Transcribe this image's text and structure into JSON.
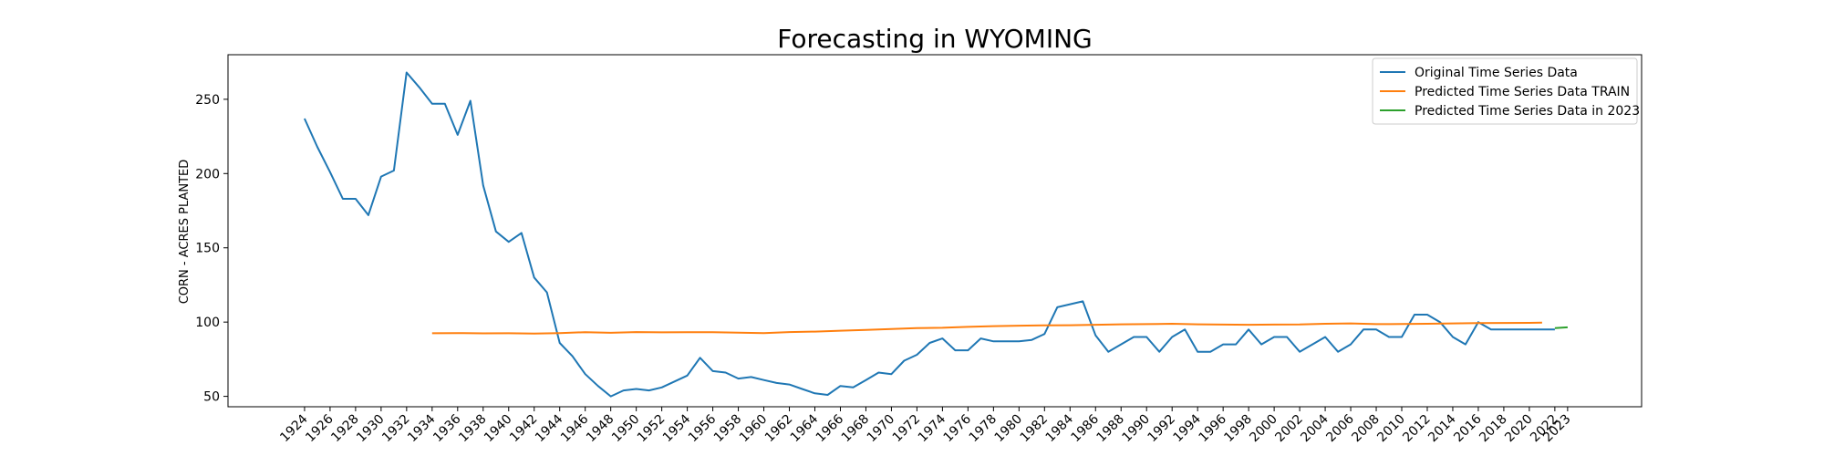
{
  "chart_data": {
    "type": "line",
    "title": "Forecasting in WYOMING",
    "xlabel": "",
    "ylabel": "CORN - ACRES PLANTED",
    "xlim": [
      1918.0,
      2028.8
    ],
    "ylim": [
      43,
      280
    ],
    "yticks": [
      50,
      100,
      150,
      200,
      250
    ],
    "xticks": [
      1924,
      1926,
      1928,
      1930,
      1932,
      1934,
      1936,
      1938,
      1940,
      1942,
      1944,
      1946,
      1948,
      1950,
      1952,
      1954,
      1956,
      1958,
      1960,
      1962,
      1964,
      1966,
      1968,
      1970,
      1972,
      1974,
      1976,
      1978,
      1980,
      1982,
      1984,
      1986,
      1988,
      1990,
      1992,
      1994,
      1996,
      1998,
      2000,
      2002,
      2004,
      2006,
      2008,
      2010,
      2012,
      2014,
      2016,
      2018,
      2020,
      2022,
      2023
    ],
    "legend_position": "top-right",
    "grid": false,
    "series": [
      {
        "name": "Original Time Series Data",
        "color": "#1f77b4",
        "x": [
          1924,
          1925,
          1926,
          1927,
          1928,
          1929,
          1930,
          1931,
          1932,
          1933,
          1934,
          1935,
          1936,
          1937,
          1938,
          1939,
          1940,
          1941,
          1942,
          1943,
          1944,
          1945,
          1946,
          1947,
          1948,
          1949,
          1950,
          1951,
          1952,
          1953,
          1954,
          1955,
          1956,
          1957,
          1958,
          1959,
          1960,
          1961,
          1962,
          1963,
          1964,
          1965,
          1966,
          1967,
          1968,
          1969,
          1970,
          1971,
          1972,
          1973,
          1974,
          1975,
          1976,
          1977,
          1978,
          1979,
          1980,
          1981,
          1982,
          1983,
          1984,
          1985,
          1986,
          1987,
          1988,
          1989,
          1990,
          1991,
          1992,
          1993,
          1994,
          1995,
          1996,
          1997,
          1998,
          1999,
          2000,
          2001,
          2002,
          2003,
          2004,
          2005,
          2006,
          2007,
          2008,
          2009,
          2010,
          2011,
          2012,
          2013,
          2014,
          2015,
          2016,
          2017,
          2018,
          2019,
          2020,
          2021,
          2022
        ],
        "values": [
          237,
          218,
          201,
          183,
          183,
          172,
          198,
          202,
          268,
          258,
          247,
          247,
          226,
          249,
          192,
          161,
          154,
          160,
          130,
          120,
          86,
          77,
          65,
          57,
          50,
          54,
          55,
          54,
          56,
          60,
          64,
          76,
          67,
          66,
          62,
          63,
          61,
          59,
          58,
          55,
          52,
          51,
          57,
          56,
          61,
          66,
          65,
          74,
          78,
          86,
          89,
          81,
          81,
          89,
          87,
          87,
          87,
          88,
          92,
          110,
          112,
          114,
          91,
          80,
          85,
          90,
          90,
          80,
          90,
          95,
          80,
          80,
          85,
          85,
          95,
          85,
          90,
          90,
          80,
          85,
          90,
          80,
          85,
          95,
          95,
          90,
          90,
          105,
          105,
          100,
          90,
          85,
          100,
          95,
          95,
          95,
          95,
          95,
          95
        ]
      },
      {
        "name": "Predicted Time Series Data TRAIN",
        "color": "#ff7f0e",
        "x": [
          1934,
          1936,
          1938,
          1940,
          1942,
          1944,
          1946,
          1948,
          1950,
          1952,
          1954,
          1956,
          1958,
          1960,
          1962,
          1964,
          1966,
          1968,
          1970,
          1972,
          1974,
          1976,
          1978,
          1980,
          1982,
          1984,
          1986,
          1988,
          1990,
          1992,
          1994,
          1996,
          1998,
          2000,
          2002,
          2004,
          2006,
          2008,
          2010,
          2012,
          2014,
          2016,
          2018,
          2020,
          2021
        ],
        "values": [
          92.5,
          92.6,
          92.4,
          92.5,
          92.3,
          92.6,
          93.2,
          92.8,
          93.3,
          93.1,
          93.2,
          93.2,
          92.9,
          92.6,
          93.3,
          93.6,
          94.2,
          94.7,
          95.3,
          96.0,
          96.2,
          96.8,
          97.3,
          97.6,
          97.8,
          97.9,
          98.2,
          98.5,
          98.6,
          98.9,
          98.5,
          98.3,
          98.2,
          98.3,
          98.4,
          98.9,
          99.1,
          98.6,
          98.7,
          98.9,
          99.1,
          99.3,
          99.4,
          99.5,
          99.6
        ]
      },
      {
        "name": "Predicted Time Series Data in 2023",
        "color": "#2ca02c",
        "x": [
          2022,
          2023
        ],
        "values": [
          96,
          96.5
        ]
      }
    ]
  }
}
